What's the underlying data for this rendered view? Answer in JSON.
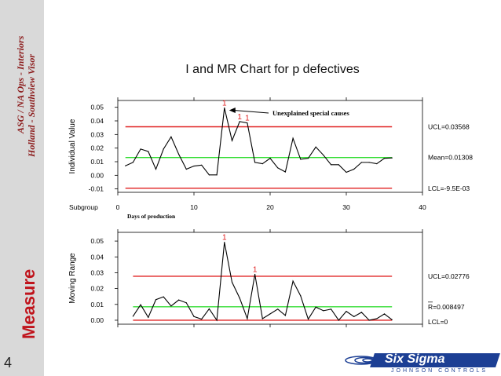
{
  "slide": {
    "sidebar_line1": "ASG / NA Ops - Interiors",
    "sidebar_line2": "Holland - Southview Visor",
    "sidebar_section": "Measure",
    "page_number": "4",
    "title": "I and MR Chart for p defectives",
    "logo_text": "Six Sigma",
    "logo_subtext": "JOHNSON CONTROLS"
  },
  "colors": {
    "control_limit": "#e02020",
    "center_line": "#33dd33",
    "series": "#000000",
    "signal": "#e02020",
    "sidebar_text": "#8b1a1a",
    "measure_text": "#c0141c",
    "logo_blue": "#1c3f94"
  },
  "chart_data": [
    {
      "type": "line",
      "name": "individuals",
      "ylabel": "Individual Value",
      "xlabel": "Days of production",
      "subgroup_label": "Subgroup",
      "x_ticks": [
        0,
        10,
        20,
        30,
        40
      ],
      "xlim": [
        0,
        40
      ],
      "y_ticks": [
        "-0.01",
        "0.00",
        "0.01",
        "0.02",
        "0.03",
        "0.04",
        "0.05"
      ],
      "ylim": [
        -0.0125,
        0.055
      ],
      "x": [
        1,
        2,
        3,
        4,
        5,
        6,
        7,
        8,
        9,
        10,
        11,
        12,
        13,
        14,
        15,
        16,
        17,
        18,
        19,
        20,
        21,
        22,
        23,
        24,
        25,
        26,
        27,
        28,
        29,
        30,
        31,
        32,
        33,
        34,
        35,
        36
      ],
      "values": [
        0.007,
        0.0095,
        0.0193,
        0.0175,
        0.0045,
        0.0193,
        0.0283,
        0.0155,
        0.0045,
        0.0068,
        0.0075,
        0.0003,
        0.0003,
        0.0495,
        0.0255,
        0.0395,
        0.0385,
        0.0095,
        0.0085,
        0.0125,
        0.0055,
        0.0025,
        0.0272,
        0.0118,
        0.0125,
        0.0208,
        0.0148,
        0.0078,
        0.0078,
        0.0022,
        0.0045,
        0.0095,
        0.0095,
        0.0085,
        0.0125,
        0.0128
      ],
      "ucl": 0.03568,
      "mean": 0.01308,
      "lcl": -0.0095,
      "ucl_label": "UCL=0.03568",
      "mean_label": "Mean=0.01308",
      "lcl_label": "LCL=-9.5E-03",
      "signals": [
        {
          "x": 14,
          "label": "1"
        },
        {
          "x": 16,
          "label": "1"
        },
        {
          "x": 17,
          "label": "1"
        }
      ],
      "annotation": "Unexplained special causes"
    },
    {
      "type": "line",
      "name": "moving_range",
      "ylabel": "Moving Range",
      "x_ticks": [
        0,
        10,
        20,
        30,
        40
      ],
      "xlim": [
        0,
        40
      ],
      "y_ticks": [
        "0.00",
        "0.01",
        "0.02",
        "0.03",
        "0.04",
        "0.05"
      ],
      "ylim": [
        -0.0025,
        0.0555
      ],
      "x": [
        2,
        3,
        4,
        5,
        6,
        7,
        8,
        9,
        10,
        11,
        12,
        13,
        14,
        15,
        16,
        17,
        18,
        19,
        20,
        21,
        22,
        23,
        24,
        25,
        26,
        27,
        28,
        29,
        30,
        31,
        32,
        33,
        34,
        35,
        36
      ],
      "values": [
        0.0025,
        0.0098,
        0.0018,
        0.013,
        0.0148,
        0.009,
        0.0128,
        0.011,
        0.0023,
        0.0007,
        0.0072,
        0.0,
        0.0492,
        0.024,
        0.014,
        0.001,
        0.029,
        0.001,
        0.004,
        0.007,
        0.003,
        0.0247,
        0.0154,
        0.0007,
        0.0083,
        0.006,
        0.007,
        0.0,
        0.0056,
        0.0023,
        0.005,
        0.0,
        0.001,
        0.004,
        0.0003
      ],
      "ucl": 0.02776,
      "mean": 0.008497,
      "lcl": 0,
      "ucl_label": "UCL=0.02776",
      "mean_label": "R=0.008497",
      "lcl_label": "LCL=0",
      "signals": [
        {
          "x": 14,
          "label": "1"
        },
        {
          "x": 18,
          "label": "1"
        }
      ]
    }
  ]
}
